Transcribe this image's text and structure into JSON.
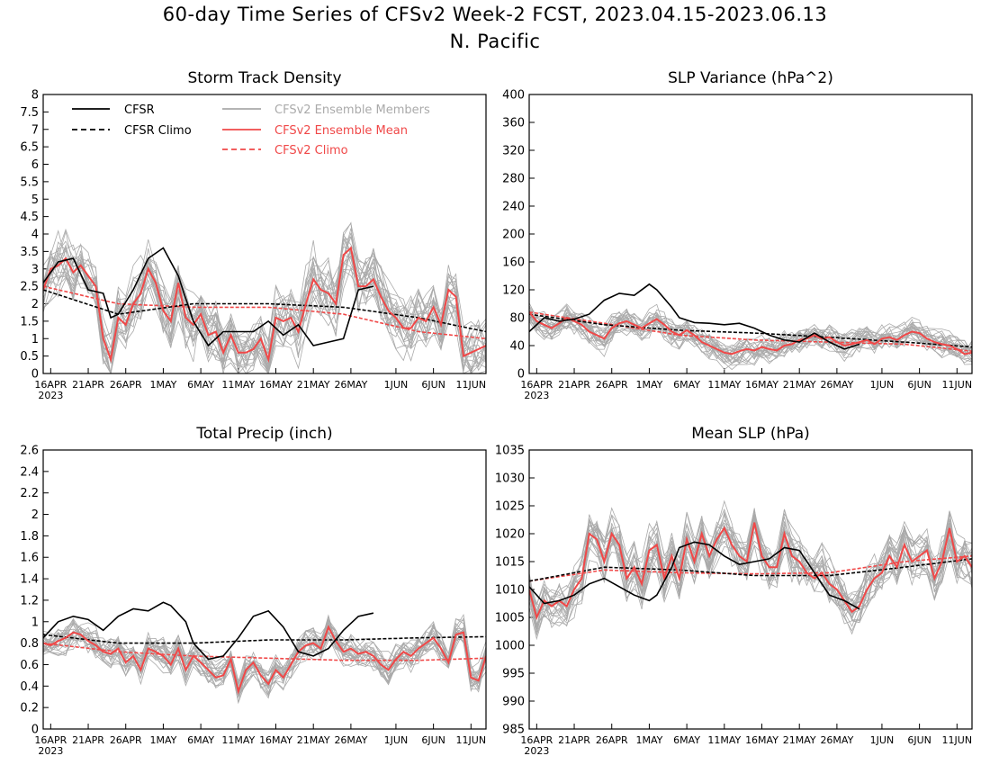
{
  "title": "60-day Time Series of CFSv2 Week-2 FCST, 2023.04.15-2023.06.13",
  "subtitle": "N. Pacific",
  "colors": {
    "cfsr": "#000000",
    "cfsr_climo": "#000000",
    "members": "#aaaaaa",
    "ens_mean": "#f04848",
    "cfsv2_climo": "#f04848"
  },
  "legend": [
    {
      "label": "CFSR",
      "style": "solid",
      "color": "#000000",
      "text_color": "#000000"
    },
    {
      "label": "CFSR Climo",
      "style": "dashed",
      "color": "#000000",
      "text_color": "#000000"
    },
    {
      "label": "CFSv2 Ensemble Members",
      "style": "solid",
      "color": "#aaaaaa",
      "text_color": "#aaaaaa"
    },
    {
      "label": "CFSv2 Ensemble Mean",
      "style": "solid",
      "color": "#f04848",
      "text_color": "#f04848"
    },
    {
      "label": "CFSv2 Climo",
      "style": "dashed",
      "color": "#f04848",
      "text_color": "#f04848"
    }
  ],
  "x_ticks": [
    "16APR",
    "21APR",
    "26APR",
    "1MAY",
    "6MAY",
    "11MAY",
    "16MAY",
    "21MAY",
    "26MAY",
    "1JUN",
    "6JUN",
    "11JUN"
  ],
  "x_year": "2023",
  "chart_data": [
    {
      "type": "line",
      "title": "Storm Track Density",
      "ylim": [
        0,
        8
      ],
      "yticks": [
        "0",
        "0.5",
        "1",
        "1.5",
        "2",
        "2.5",
        "3",
        "3.5",
        "4",
        "4.5",
        "5",
        "5.5",
        "6",
        "6.5",
        "7",
        "7.5",
        "8"
      ],
      "ytick_values": [
        0,
        0.5,
        1,
        1.5,
        2,
        2.5,
        3,
        3.5,
        4,
        4.5,
        5,
        5.5,
        6,
        6.5,
        7,
        7.5,
        8
      ],
      "x_start": "2023-04-15",
      "x_end": "2023-06-13",
      "series": [
        {
          "name": "CFSR",
          "x": [
            0,
            2,
            4,
            6,
            8,
            9,
            10,
            12,
            14,
            16,
            18,
            20,
            22,
            24,
            26,
            28,
            30,
            32,
            34,
            36,
            38,
            40,
            42,
            44
          ],
          "values": [
            2.6,
            3.2,
            3.3,
            2.4,
            2.3,
            1.6,
            1.7,
            2.4,
            3.3,
            3.6,
            2.8,
            1.5,
            0.8,
            1.2,
            1.2,
            1.2,
            1.5,
            1.1,
            1.4,
            0.8,
            0.9,
            1.0,
            2.4,
            2.5
          ]
        },
        {
          "name": "CFSR Climo",
          "x": [
            0,
            10,
            20,
            30,
            40,
            50,
            59
          ],
          "values": [
            2.4,
            1.7,
            2.0,
            2.0,
            1.9,
            1.6,
            1.2
          ]
        },
        {
          "name": "CFSv2 Ensemble Mean",
          "values": [
            2.4,
            3.0,
            3.1,
            3.3,
            2.9,
            3.1,
            2.8,
            2.5,
            1.0,
            0.4,
            1.6,
            1.4,
            2.0,
            2.3,
            3.0,
            2.6,
            1.8,
            1.5,
            2.6,
            1.6,
            1.4,
            1.7,
            1.1,
            1.2,
            0.6,
            1.1,
            0.6,
            0.6,
            0.7,
            1.0,
            0.4,
            1.6,
            1.5,
            1.6,
            1.2,
            2.0,
            2.7,
            2.4,
            2.3,
            2.0,
            3.4,
            3.6,
            2.5,
            2.5,
            2.7,
            2.2,
            1.8,
            1.6,
            1.3,
            1.3,
            1.6,
            1.5,
            1.9,
            1.4,
            2.4,
            2.2,
            0.5,
            0.6,
            0.7,
            0.8
          ]
        },
        {
          "name": "CFSv2 Climo",
          "x": [
            0,
            10,
            20,
            30,
            40,
            50,
            59
          ],
          "values": [
            2.5,
            2.0,
            1.9,
            1.9,
            1.7,
            1.2,
            1.0
          ]
        }
      ]
    },
    {
      "type": "line",
      "title": "SLP Variance (hPa^2)",
      "ylim": [
        0,
        400
      ],
      "yticks": [
        "0",
        "40",
        "80",
        "120",
        "160",
        "200",
        "240",
        "280",
        "320",
        "360",
        "400"
      ],
      "ytick_values": [
        0,
        40,
        80,
        120,
        160,
        200,
        240,
        280,
        320,
        360,
        400
      ],
      "x_start": "2023-04-15",
      "x_end": "2023-06-13",
      "series": [
        {
          "name": "CFSR",
          "x": [
            0,
            2,
            4,
            6,
            8,
            10,
            12,
            14,
            16,
            17,
            19,
            20,
            22,
            24,
            26,
            28,
            30,
            32,
            34,
            36,
            38,
            40,
            42,
            44
          ],
          "values": [
            60,
            80,
            75,
            78,
            85,
            105,
            115,
            112,
            128,
            120,
            95,
            80,
            73,
            72,
            70,
            72,
            65,
            55,
            48,
            45,
            58,
            45,
            35,
            42
          ]
        },
        {
          "name": "CFSR Climo",
          "x": [
            0,
            10,
            20,
            30,
            40,
            50,
            59
          ],
          "values": [
            85,
            70,
            62,
            58,
            52,
            45,
            38
          ]
        },
        {
          "name": "CFSv2 Ensemble Mean",
          "values": [
            88,
            75,
            70,
            65,
            72,
            80,
            75,
            70,
            60,
            55,
            50,
            65,
            72,
            75,
            70,
            65,
            72,
            78,
            70,
            60,
            55,
            62,
            55,
            45,
            40,
            35,
            30,
            28,
            32,
            35,
            33,
            38,
            35,
            33,
            40,
            42,
            48,
            50,
            55,
            50,
            52,
            45,
            40,
            42,
            45,
            48,
            42,
            50,
            52,
            48,
            55,
            60,
            58,
            50,
            45,
            42,
            40,
            35,
            28,
            30
          ]
        },
        {
          "name": "CFSv2 Climo",
          "x": [
            0,
            10,
            20,
            30,
            40,
            50,
            59
          ],
          "values": [
            88,
            72,
            55,
            48,
            45,
            42,
            32
          ]
        }
      ]
    },
    {
      "type": "line",
      "title": "Total Precip (inch)",
      "ylim": [
        0,
        2.6
      ],
      "yticks": [
        "0",
        "0.2",
        "0.4",
        "0.6",
        "0.8",
        "1",
        "1.2",
        "1.4",
        "1.6",
        "1.8",
        "2",
        "2.2",
        "2.4",
        "2.6"
      ],
      "ytick_values": [
        0,
        0.2,
        0.4,
        0.6,
        0.8,
        1,
        1.2,
        1.4,
        1.6,
        1.8,
        2,
        2.2,
        2.4,
        2.6
      ],
      "x_start": "2023-04-15",
      "x_end": "2023-06-13",
      "series": [
        {
          "name": "CFSR",
          "x": [
            0,
            2,
            4,
            6,
            8,
            10,
            12,
            14,
            16,
            17,
            19,
            20,
            22,
            24,
            26,
            28,
            30,
            32,
            34,
            36,
            38,
            40,
            42,
            44
          ],
          "values": [
            0.85,
            1.0,
            1.05,
            1.02,
            0.92,
            1.05,
            1.12,
            1.1,
            1.18,
            1.15,
            1.0,
            0.8,
            0.65,
            0.68,
            0.85,
            1.05,
            1.1,
            0.95,
            0.72,
            0.68,
            0.75,
            0.92,
            1.05,
            1.08
          ]
        },
        {
          "name": "CFSR Climo",
          "x": [
            0,
            10,
            20,
            30,
            40,
            50,
            59
          ],
          "values": [
            0.88,
            0.8,
            0.8,
            0.83,
            0.83,
            0.85,
            0.86
          ]
        },
        {
          "name": "CFSv2 Ensemble Mean",
          "values": [
            0.8,
            0.78,
            0.82,
            0.85,
            0.9,
            0.88,
            0.82,
            0.78,
            0.72,
            0.7,
            0.75,
            0.62,
            0.68,
            0.55,
            0.75,
            0.72,
            0.68,
            0.6,
            0.75,
            0.55,
            0.68,
            0.62,
            0.55,
            0.48,
            0.5,
            0.65,
            0.35,
            0.55,
            0.62,
            0.5,
            0.42,
            0.55,
            0.48,
            0.6,
            0.72,
            0.78,
            0.8,
            0.75,
            0.95,
            0.82,
            0.72,
            0.75,
            0.7,
            0.72,
            0.68,
            0.6,
            0.55,
            0.65,
            0.72,
            0.68,
            0.75,
            0.8,
            0.85,
            0.75,
            0.62,
            0.88,
            0.9,
            0.48,
            0.45,
            0.68
          ]
        },
        {
          "name": "CFSv2 Climo",
          "x": [
            0,
            10,
            20,
            30,
            40,
            50,
            59
          ],
          "values": [
            0.8,
            0.72,
            0.68,
            0.66,
            0.64,
            0.64,
            0.66
          ]
        }
      ]
    },
    {
      "type": "line",
      "title": "Mean SLP (hPa)",
      "ylim": [
        985,
        1035
      ],
      "yticks": [
        "985",
        "990",
        "995",
        "1000",
        "1005",
        "1010",
        "1015",
        "1020",
        "1025",
        "1030",
        "1035"
      ],
      "ytick_values": [
        985,
        990,
        995,
        1000,
        1005,
        1010,
        1015,
        1020,
        1025,
        1030,
        1035
      ],
      "x_start": "2023-04-15",
      "x_end": "2023-06-13",
      "series": [
        {
          "name": "CFSR",
          "x": [
            0,
            2,
            4,
            6,
            8,
            10,
            12,
            14,
            16,
            17,
            19,
            20,
            22,
            24,
            26,
            28,
            30,
            32,
            34,
            36,
            38,
            40,
            42,
            44
          ],
          "values": [
            1010.5,
            1007.5,
            1008,
            1009,
            1011,
            1012,
            1010.5,
            1009,
            1008,
            1009,
            1014,
            1017.5,
            1018.5,
            1018,
            1016,
            1014.5,
            1015,
            1015.5,
            1017.5,
            1017,
            1013,
            1009,
            1008,
            1006.5
          ]
        },
        {
          "name": "CFSR Climo",
          "x": [
            0,
            10,
            20,
            30,
            40,
            50,
            59
          ],
          "values": [
            1011.5,
            1014,
            1013.5,
            1012.5,
            1012.5,
            1014,
            1015.5
          ]
        },
        {
          "name": "CFSv2 Ensemble Mean",
          "values": [
            1010,
            1005,
            1008,
            1007,
            1008,
            1007,
            1010,
            1012,
            1020,
            1019,
            1015,
            1020,
            1018,
            1012,
            1014,
            1011,
            1017,
            1018,
            1012,
            1016,
            1012,
            1019,
            1015,
            1020,
            1016,
            1019,
            1021,
            1018,
            1016,
            1015,
            1022,
            1016,
            1014,
            1014,
            1020,
            1016,
            1015,
            1013,
            1012,
            1013,
            1011,
            1010,
            1008,
            1006,
            1007,
            1010,
            1012,
            1013,
            1016,
            1014,
            1018,
            1015,
            1016,
            1017,
            1012,
            1015,
            1021,
            1015,
            1016,
            1014
          ]
        },
        {
          "name": "CFSv2 Climo",
          "x": [
            0,
            10,
            20,
            30,
            40,
            50,
            59
          ],
          "values": [
            1011.5,
            1013.5,
            1013,
            1012.8,
            1013,
            1015,
            1016
          ]
        }
      ]
    }
  ]
}
